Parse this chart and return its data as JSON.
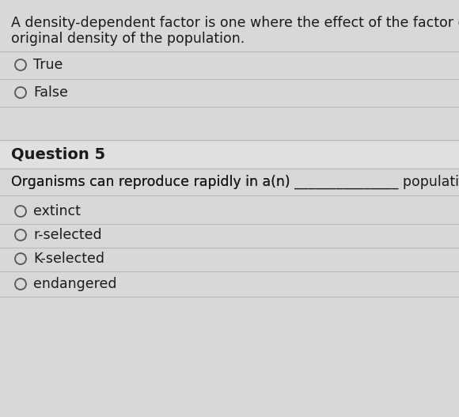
{
  "bg_color": "#d8d8d8",
  "content_bg": "#f0f0f0",
  "question_text_1": "A density-dependent factor is one where the effect of the factor on the size",
  "question_text_2": "original density of the population.",
  "options_q4": [
    "True",
    "False"
  ],
  "question5_label": "Question 5",
  "question5_stem_left": "Organisms can reproduce rapidly in a(n) ",
  "question5_stem_blank": "_______________",
  "question5_stem_right": " population.",
  "options_q5": [
    "extinct",
    "r-selected",
    "K-selected",
    "endangered"
  ],
  "text_color": "#1a1a1a",
  "line_color": "#b8b8b8",
  "circle_edge_color": "#555555",
  "font_size_body": 12.5,
  "font_size_q5_label": 14,
  "q5_label_bg": "#e0e0e0"
}
